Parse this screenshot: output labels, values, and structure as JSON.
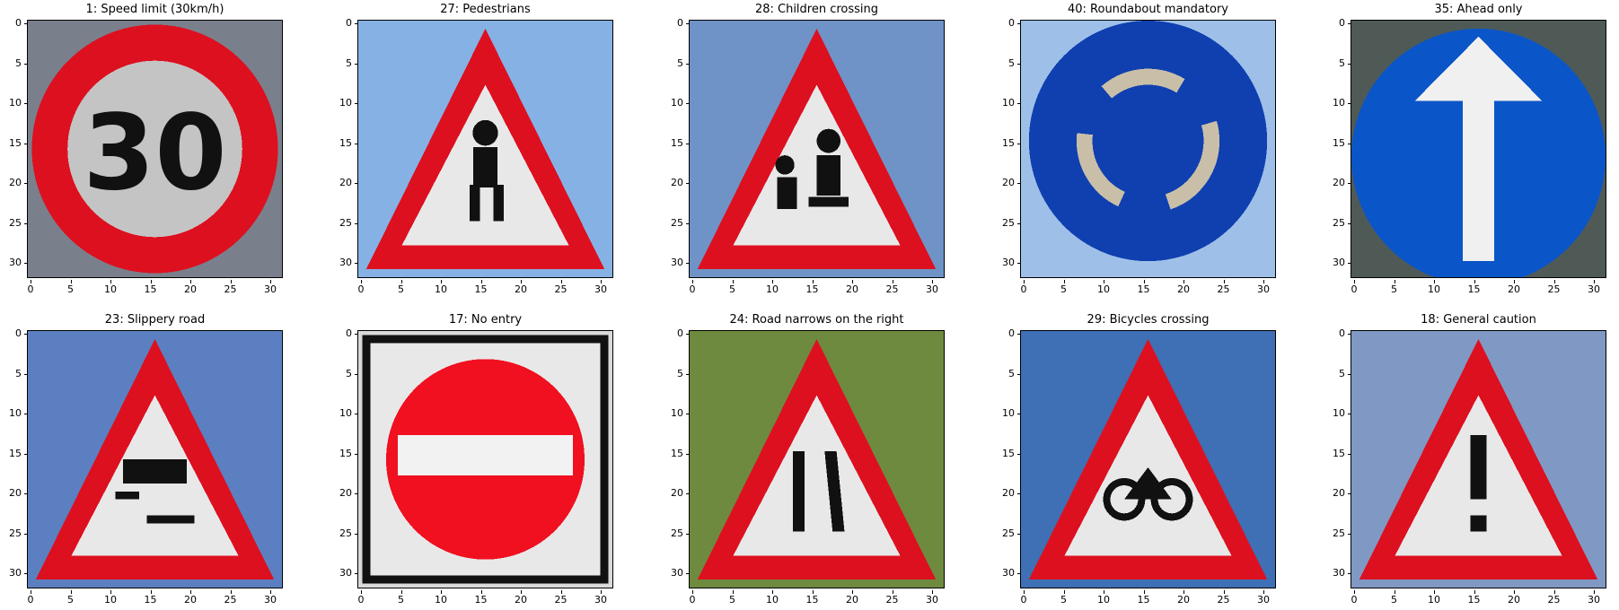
{
  "figure": {
    "panels": [
      {
        "title": "1: Speed limit (30km/h)",
        "sign": "speed-limit-30",
        "bg": "#7a7f8c",
        "legend": "30"
      },
      {
        "title": "27: Pedestrians",
        "sign": "warning-pedestrian",
        "bg": "#86b1e4"
      },
      {
        "title": "28: Children crossing",
        "sign": "warning-children",
        "bg": "#6f93c6"
      },
      {
        "title": "40: Roundabout mandatory",
        "sign": "roundabout",
        "bg": "#9ec0e8"
      },
      {
        "title": "35: Ahead only",
        "sign": "ahead-only",
        "bg": "#4f5a57"
      },
      {
        "title": "23: Slippery road",
        "sign": "warning-slippery",
        "bg": "#5b7fc0"
      },
      {
        "title": "17: No entry",
        "sign": "no-entry",
        "bg": "#d9d9d9"
      },
      {
        "title": "24: Road narrows on the right",
        "sign": "warning-narrows",
        "bg": "#6e8a3f"
      },
      {
        "title": "29: Bicycles crossing",
        "sign": "warning-bicycle",
        "bg": "#3f6fb4"
      },
      {
        "title": "18: General caution",
        "sign": "warning-caution",
        "bg": "#7f99c4"
      }
    ],
    "y_ticks": [
      "0",
      "5",
      "10",
      "15",
      "20",
      "25",
      "30"
    ],
    "x_ticks": [
      "0",
      "5",
      "10",
      "15",
      "20",
      "25",
      "30"
    ],
    "colors": {
      "sign_red": "#dd1020",
      "sign_blue": "#1040b0",
      "sign_white": "#e8e8e8",
      "glyph_black": "#111111"
    }
  }
}
